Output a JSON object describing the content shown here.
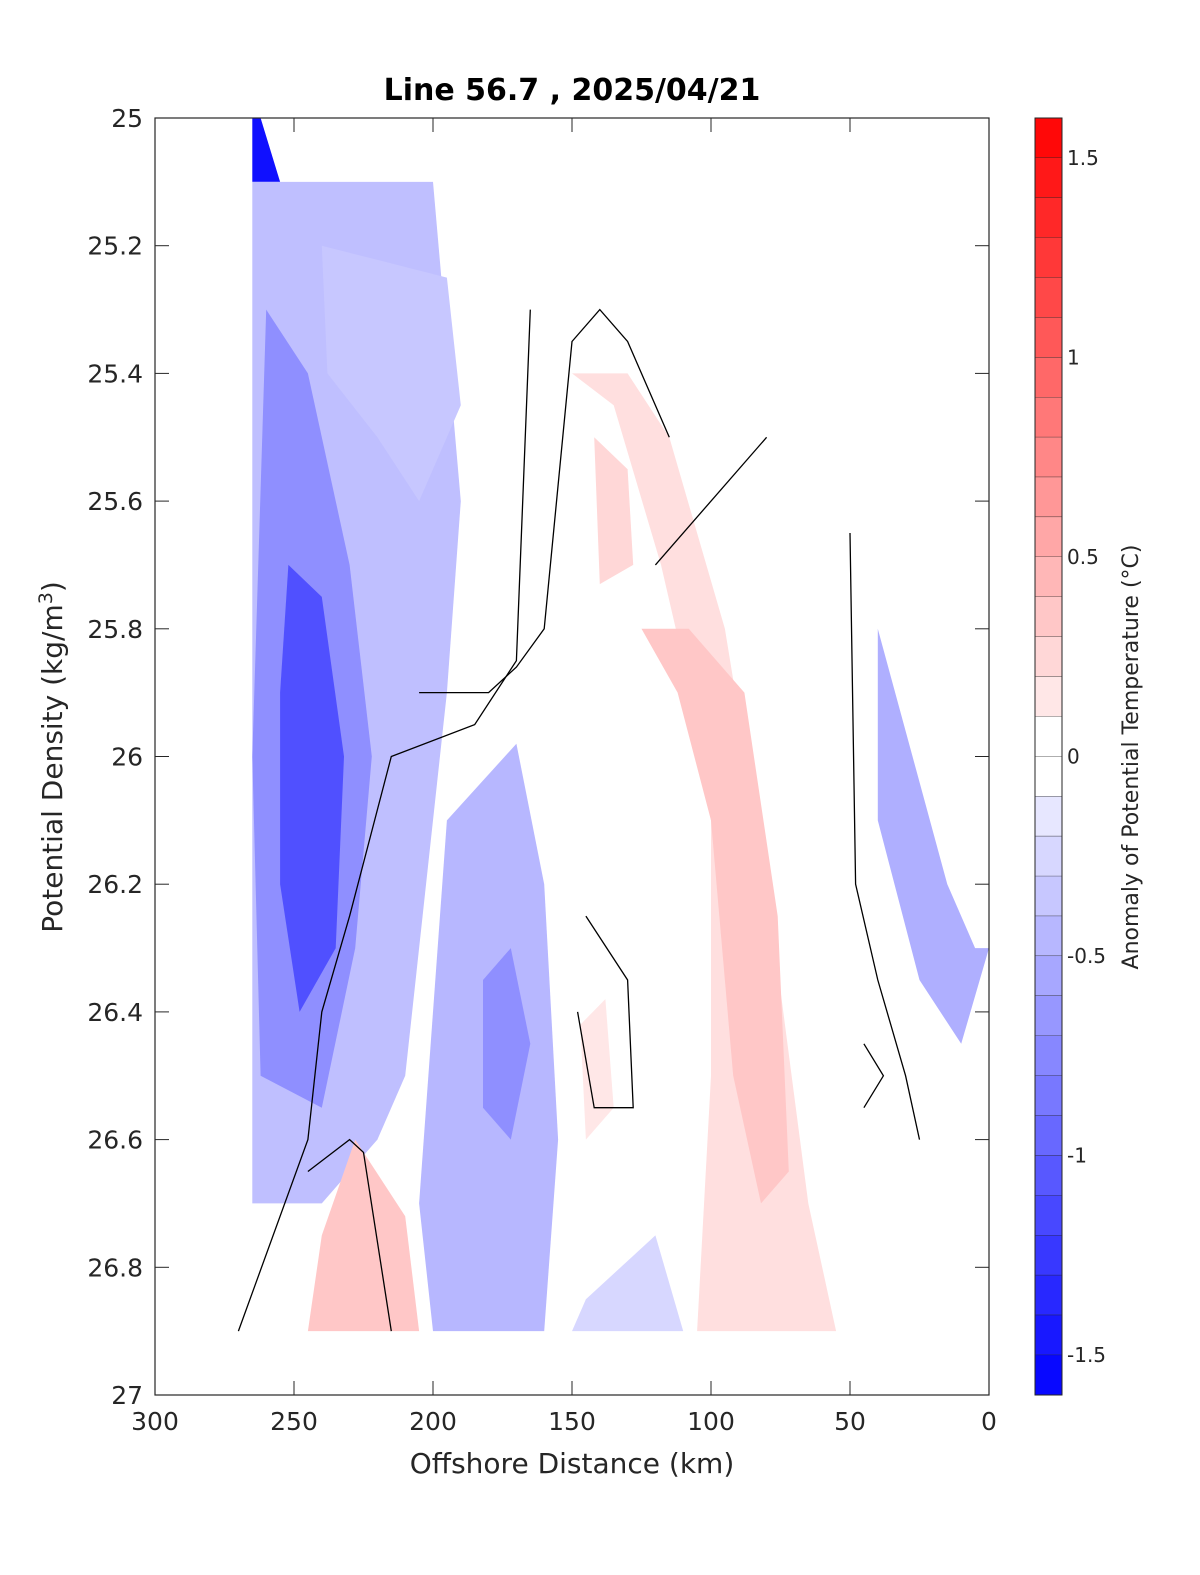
{
  "chart_data": {
    "type": "filled-contour",
    "title": "Line 56.7 , 2025/04/21",
    "xlabel": "Offshore Distance (km)",
    "ylabel": "Potential Density (kg/m3)",
    "ylabel_main": "Potential Density (kg/m",
    "ylabel_sup": "3",
    "ylabel_close": ")",
    "xlim": [
      300,
      0
    ],
    "ylim": [
      25,
      27
    ],
    "x_reversed": true,
    "y_reversed": true,
    "xticks": [
      300,
      250,
      200,
      150,
      100,
      50,
      0
    ],
    "xtick_labels": [
      "300",
      "250",
      "200",
      "150",
      "100",
      "50",
      "0"
    ],
    "yticks": [
      25,
      25.2,
      25.4,
      25.6,
      25.8,
      26,
      26.2,
      26.4,
      26.6,
      26.8,
      27
    ],
    "ytick_labels": [
      "25",
      "25.2",
      "25.4",
      "25.6",
      "25.8",
      "26",
      "26.2",
      "26.4",
      "26.6",
      "26.8",
      "27"
    ],
    "colorbar": {
      "label": "Anomaly of Potential Temperature (°C)",
      "limits": [
        -1.6,
        1.6
      ],
      "step": 0.1,
      "tick_values": [
        1.5,
        1,
        0.5,
        0,
        -0.5,
        -1,
        -1.5
      ],
      "tick_labels": [
        "1.5",
        "1",
        "0.5",
        "0",
        "-0.5",
        "-1",
        "-1.5"
      ],
      "colormap": "blue-white-red",
      "neg_color": "#0000ff",
      "pos_color": "#ff0000",
      "mid_color": "#ffffff"
    },
    "zero_contour_color": "#000000",
    "regions": [
      {
        "name": "nearshore-cold-edge",
        "value": -1.5,
        "points": [
          [
            265,
            25.0
          ],
          [
            262,
            25.0
          ],
          [
            255,
            25.1
          ],
          [
            265,
            25.1
          ]
        ]
      },
      {
        "name": "offshore-cold-band",
        "value": -0.4,
        "points": [
          [
            265,
            25.1
          ],
          [
            200,
            25.1
          ],
          [
            190,
            25.6
          ],
          [
            195,
            25.9
          ],
          [
            205,
            26.3
          ],
          [
            210,
            26.5
          ],
          [
            220,
            26.6
          ],
          [
            240,
            26.7
          ],
          [
            265,
            26.7
          ]
        ]
      },
      {
        "name": "cold-core-mid",
        "value": -0.7,
        "points": [
          [
            260,
            25.3
          ],
          [
            245,
            25.4
          ],
          [
            230,
            25.7
          ],
          [
            222,
            26.0
          ],
          [
            228,
            26.3
          ],
          [
            240,
            26.55
          ],
          [
            262,
            26.5
          ],
          [
            265,
            26.0
          ]
        ]
      },
      {
        "name": "cold-core-strong",
        "value": -1.1,
        "points": [
          [
            252,
            25.7
          ],
          [
            240,
            25.75
          ],
          [
            232,
            26.0
          ],
          [
            235,
            26.3
          ],
          [
            248,
            26.4
          ],
          [
            255,
            26.2
          ],
          [
            255,
            25.9
          ]
        ]
      },
      {
        "name": "upper-cold-lobe",
        "value": -0.35,
        "points": [
          [
            240,
            25.2
          ],
          [
            195,
            25.25
          ],
          [
            190,
            25.45
          ],
          [
            205,
            25.6
          ],
          [
            220,
            25.5
          ],
          [
            238,
            25.4
          ]
        ]
      },
      {
        "name": "mid-cold-tongue",
        "value": -0.45,
        "points": [
          [
            195,
            26.1
          ],
          [
            170,
            25.98
          ],
          [
            160,
            26.2
          ],
          [
            155,
            26.6
          ],
          [
            160,
            26.9
          ],
          [
            200,
            26.9
          ],
          [
            205,
            26.7
          ]
        ]
      },
      {
        "name": "mid-cold-core",
        "value": -0.7,
        "points": [
          [
            182,
            26.35
          ],
          [
            172,
            26.3
          ],
          [
            165,
            26.45
          ],
          [
            172,
            26.6
          ],
          [
            182,
            26.55
          ]
        ]
      },
      {
        "name": "bottom-cold-patch",
        "value": -0.25,
        "points": [
          [
            145,
            26.85
          ],
          [
            120,
            26.75
          ],
          [
            110,
            26.9
          ],
          [
            150,
            26.9
          ]
        ]
      },
      {
        "name": "warm-main-band",
        "value": 0.2,
        "points": [
          [
            150,
            25.4
          ],
          [
            135,
            25.45
          ],
          [
            118,
            25.7
          ],
          [
            110,
            25.85
          ],
          [
            100,
            26.1
          ],
          [
            100,
            26.5
          ],
          [
            105,
            26.9
          ],
          [
            55,
            26.9
          ],
          [
            65,
            26.7
          ],
          [
            80,
            26.2
          ],
          [
            95,
            25.8
          ],
          [
            115,
            25.5
          ],
          [
            130,
            25.4
          ]
        ]
      },
      {
        "name": "warm-main-core",
        "value": 0.35,
        "points": [
          [
            125,
            25.8
          ],
          [
            112,
            25.9
          ],
          [
            100,
            26.1
          ],
          [
            92,
            26.5
          ],
          [
            82,
            26.7
          ],
          [
            72,
            26.65
          ],
          [
            76,
            26.25
          ],
          [
            88,
            25.9
          ],
          [
            108,
            25.8
          ]
        ]
      },
      {
        "name": "warm-upper-core",
        "value": 0.25,
        "points": [
          [
            142,
            25.5
          ],
          [
            130,
            25.55
          ],
          [
            128,
            25.7
          ],
          [
            140,
            25.73
          ]
        ]
      },
      {
        "name": "warm-bottom-lobe",
        "value": 0.35,
        "points": [
          [
            228,
            26.6
          ],
          [
            210,
            26.72
          ],
          [
            205,
            26.9
          ],
          [
            245,
            26.9
          ],
          [
            240,
            26.75
          ]
        ]
      },
      {
        "name": "warm-mid-patch",
        "value": 0.15,
        "points": [
          [
            147,
            26.42
          ],
          [
            138,
            26.38
          ],
          [
            135,
            26.55
          ],
          [
            145,
            26.6
          ]
        ]
      },
      {
        "name": "nearshore-cold-band",
        "value": -0.5,
        "points": [
          [
            40,
            25.8
          ],
          [
            15,
            26.2
          ],
          [
            5,
            26.3
          ],
          [
            0,
            26.3
          ],
          [
            10,
            26.45
          ],
          [
            25,
            26.35
          ],
          [
            40,
            26.1
          ]
        ]
      }
    ],
    "zero_contours": [
      [
        [
          115,
          25.5
        ],
        [
          130,
          25.35
        ],
        [
          140,
          25.3
        ],
        [
          150,
          25.35
        ],
        [
          160,
          25.8
        ],
        [
          170,
          25.86
        ],
        [
          180,
          25.9
        ],
        [
          205,
          25.9
        ]
      ],
      [
        [
          120,
          25.7
        ],
        [
          80,
          25.5
        ]
      ],
      [
        [
          165,
          25.3
        ],
        [
          170,
          25.85
        ],
        [
          185,
          25.95
        ],
        [
          215,
          26.0
        ],
        [
          230,
          26.25
        ],
        [
          240,
          26.4
        ],
        [
          245,
          26.6
        ],
        [
          270,
          26.9
        ]
      ],
      [
        [
          145,
          26.25
        ],
        [
          130,
          26.35
        ],
        [
          128,
          26.55
        ],
        [
          142,
          26.55
        ],
        [
          148,
          26.4
        ]
      ],
      [
        [
          245,
          26.65
        ],
        [
          230,
          26.6
        ],
        [
          225,
          26.62
        ],
        [
          215,
          26.9
        ]
      ],
      [
        [
          50,
          25.65
        ],
        [
          48,
          26.2
        ],
        [
          40,
          26.35
        ],
        [
          30,
          26.5
        ],
        [
          25,
          26.6
        ]
      ],
      [
        [
          45,
          26.45
        ],
        [
          38,
          26.5
        ],
        [
          45,
          26.55
        ]
      ]
    ]
  }
}
